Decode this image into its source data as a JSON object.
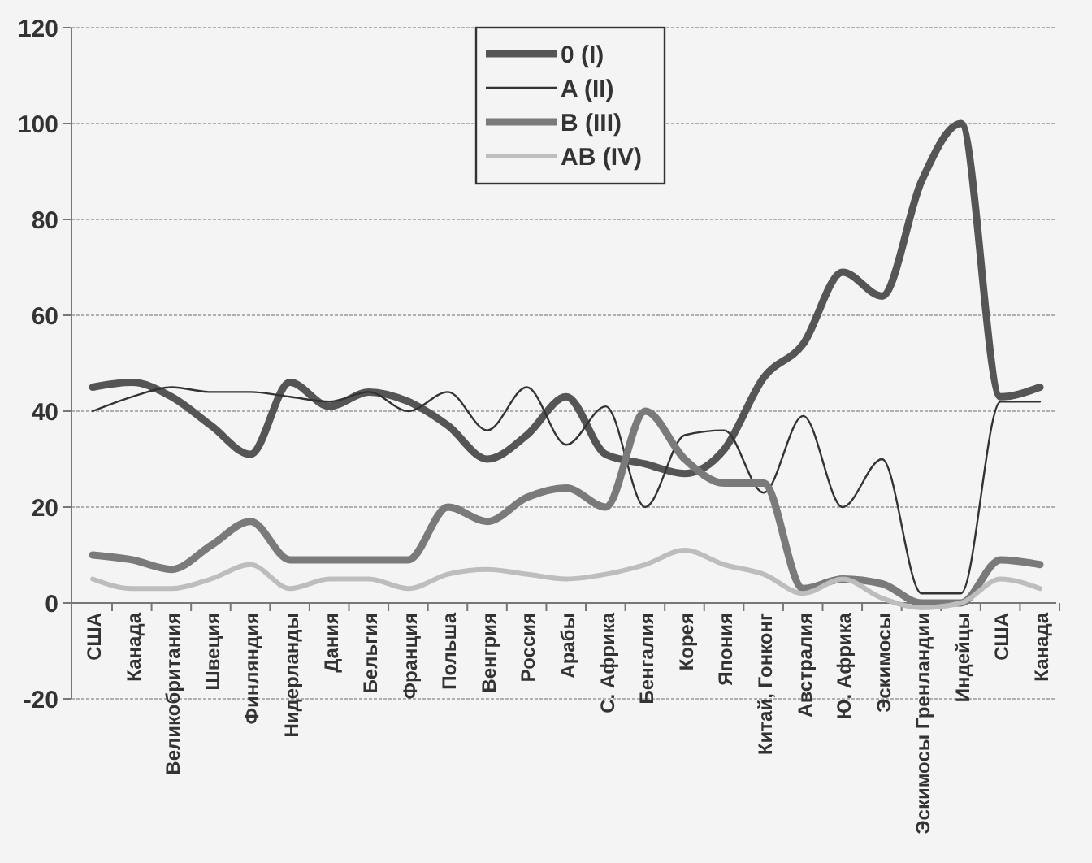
{
  "chart_data": {
    "type": "line",
    "categories": [
      "США",
      "Канада",
      "Великобритания",
      "Швеция",
      "Финляндия",
      "Нидерланды",
      "Дания",
      "Бельгия",
      "Франция",
      "Польша",
      "Венгрия",
      "Россия",
      "Арабы",
      "С. Африка",
      "Бенгалия",
      "Корея",
      "Япония",
      "Китай, Гонконг",
      "Австралия",
      "Ю. Африка",
      "Эскимосы",
      "Эскимосы Гренландии",
      "Индейцы",
      "США",
      "Канада"
    ],
    "series": [
      {
        "name": "0 (I)",
        "color": "#555555",
        "values": [
          45,
          46,
          43,
          37,
          31,
          46,
          41,
          44,
          42,
          37,
          30,
          35,
          43,
          31,
          29,
          27,
          32,
          47,
          54,
          69,
          64,
          88,
          100,
          43,
          45
        ]
      },
      {
        "name": "A (II)",
        "color": "#333333",
        "values": [
          40,
          43,
          45,
          44,
          44,
          43,
          42,
          44,
          40,
          44,
          36,
          45,
          33,
          41,
          20,
          35,
          36,
          23,
          39,
          20,
          30,
          2,
          2,
          42,
          42
        ]
      },
      {
        "name": "B (III)",
        "color": "#7a7a7a",
        "values": [
          10,
          9,
          7,
          12,
          17,
          9,
          9,
          9,
          9,
          20,
          17,
          22,
          24,
          20,
          40,
          30,
          25,
          25,
          3,
          5,
          4,
          0,
          0,
          9,
          8
        ]
      },
      {
        "name": "AB (IV)",
        "color": "#bdbdbd",
        "values": [
          5,
          3,
          3,
          5,
          8,
          3,
          5,
          5,
          3,
          6,
          7,
          6,
          5,
          6,
          8,
          11,
          8,
          6,
          2,
          5,
          1,
          -1,
          0,
          5,
          3
        ]
      }
    ],
    "ylim": [
      -20,
      120
    ],
    "yticks": [
      -20,
      0,
      20,
      40,
      60,
      80,
      100,
      120
    ],
    "grid": "y",
    "legend": "top right"
  }
}
